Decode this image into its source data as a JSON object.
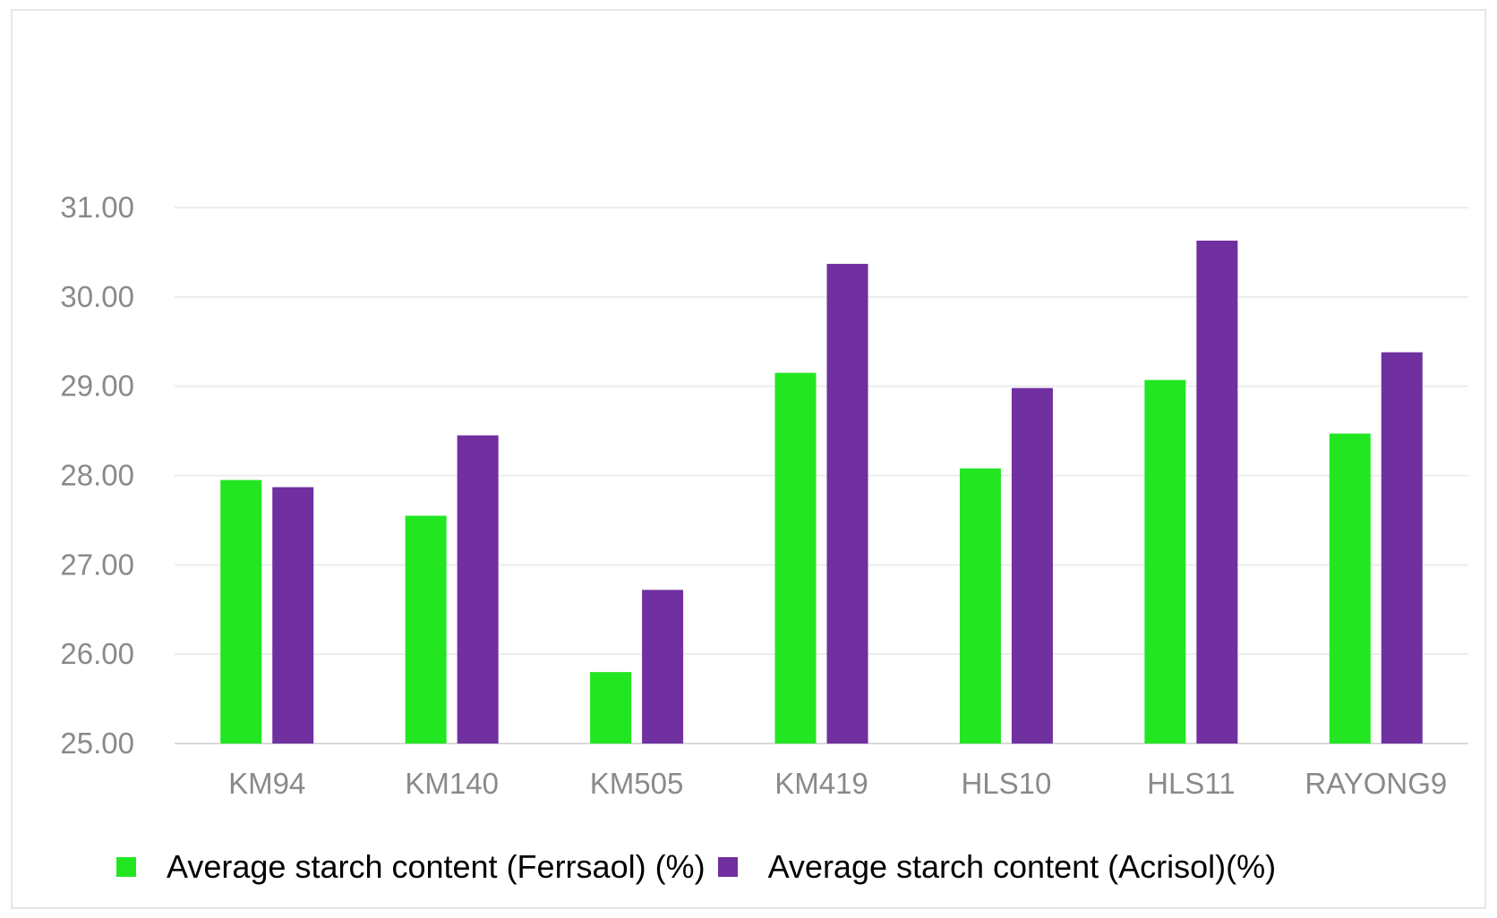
{
  "chart_data": {
    "type": "bar",
    "title": "",
    "xlabel": "",
    "ylabel": "",
    "ylim": [
      25,
      31
    ],
    "yticks": [
      "25.00",
      "26.00",
      "27.00",
      "28.00",
      "29.00",
      "30.00",
      "31.00"
    ],
    "categories": [
      "KM94",
      "KM140",
      "KM505",
      "KM419",
      "HLS10",
      "HLS11",
      "RAYONG9"
    ],
    "series": [
      {
        "name": "Average starch content (Ferrsaol) (%)",
        "color": "#22e622",
        "values": [
          27.95,
          27.55,
          25.8,
          29.15,
          28.08,
          29.07,
          28.47
        ]
      },
      {
        "name": "Average starch content (Acrisol)(%)",
        "color": "#7030a0",
        "values": [
          27.87,
          28.45,
          26.72,
          30.37,
          28.98,
          30.63,
          29.38
        ]
      }
    ],
    "grid": true,
    "legend_position": "bottom"
  }
}
